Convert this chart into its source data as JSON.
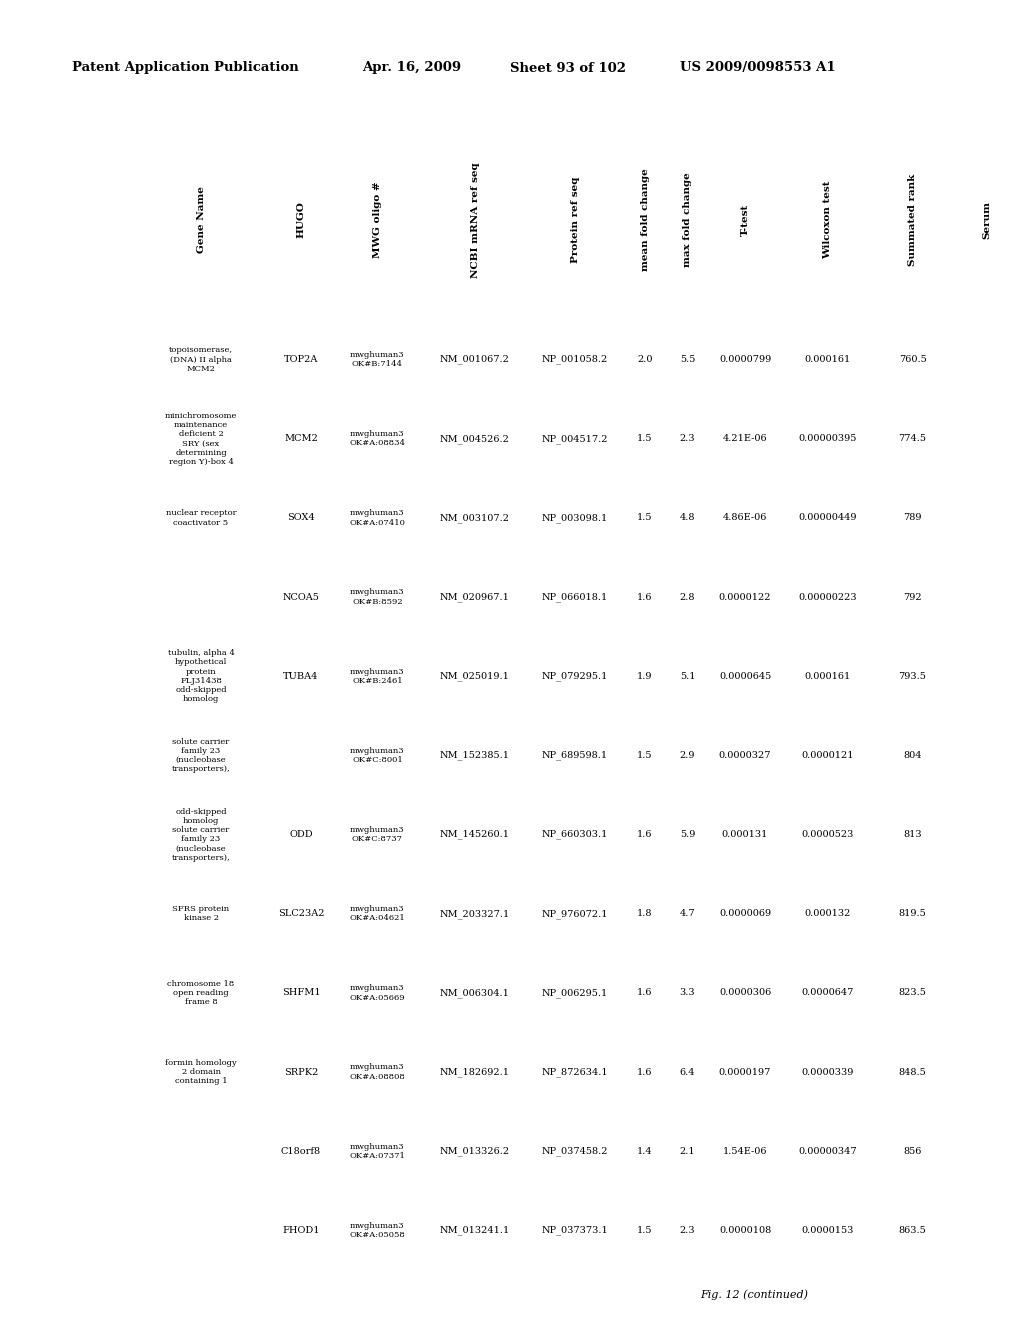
{
  "header_line1": "Patent Application Publication",
  "header_date": "Apr. 16, 2009",
  "header_sheet": "Sheet 93 of 102",
  "header_patent": "US 2009/0098553 A1",
  "fig_caption": "Fig. 12 (continued)",
  "col_headers": [
    "Gene Name",
    "HUGO",
    "MWG oligo\n#",
    "NCBI mRNA\nref seq",
    "Protein ref\nseq",
    "mean\nfold\nchange",
    "max fold\nchange",
    "T-test",
    "Wilcoxon\ntest",
    "Summated\nrank",
    "Serum"
  ],
  "rows": [
    [
      "topoisomerase,\n(DNA) II alpha\nMCM2",
      "TOP2A",
      "mwghuman3\nOK#B:7144",
      "NM_001067.2",
      "NP_001058.2",
      "2.0",
      "5.5",
      "0.0000799",
      "0.000161",
      "760.5",
      ""
    ],
    [
      "minichromosome\nmaintenance\ndeficient 2\nSRY (sex\ndetermining\nregion Y)-box 4",
      "MCM2",
      "mwghuman3\nOK#A:08834",
      "NM_004526.2",
      "NP_004517.2",
      "1.5",
      "2.3",
      "4.21E-06",
      "0.00000395",
      "774.5",
      ""
    ],
    [
      "nuclear receptor\ncoactivator 5",
      "SOX4",
      "mwghuman3\nOK#A:07410",
      "NM_003107.2",
      "NP_003098.1",
      "1.5",
      "4.8",
      "4.86E-06",
      "0.00000449",
      "789",
      ""
    ],
    [
      "",
      "NCOA5",
      "mwghuman3\nOK#B:8592",
      "NM_020967.1",
      "NP_066018.1",
      "1.6",
      "2.8",
      "0.0000122",
      "0.00000223",
      "792",
      ""
    ],
    [
      "tubulin, alpha 4\nhypothetical\nprotein\nFLJ31438\nodd-skipped\nhomolog",
      "TUBA4",
      "mwghuman3\nOK#B:2461",
      "NM_025019.1",
      "NP_079295.1",
      "1.9",
      "5.1",
      "0.0000645",
      "0.000161",
      "793.5",
      ""
    ],
    [
      "solute carrier\nfamily 23\n(nucleobase\ntransporters),",
      "",
      "mwghuman3\nOK#C:8001",
      "NM_152385.1",
      "NP_689598.1",
      "1.5",
      "2.9",
      "0.0000327",
      "0.0000121",
      "804",
      ""
    ],
    [
      "odd-skipped\nhomolog\nsolute carrier\nfamily 23\n(nucleobase\ntransporters),",
      "ODD",
      "mwghuman3\nOK#C:8737",
      "NM_145260.1",
      "NP_660303.1",
      "1.6",
      "5.9",
      "0.000131",
      "0.0000523",
      "813",
      ""
    ],
    [
      "SFRS protein\nkinase 2",
      "SLC23A2",
      "mwghuman3\nOK#A:04621",
      "NM_203327.1",
      "NP_976072.1",
      "1.8",
      "4.7",
      "0.0000069",
      "0.000132",
      "819.5",
      ""
    ],
    [
      "chromosome 18\nopen reading\nframe 8",
      "SHFM1",
      "mwghuman3\nOK#A:05669",
      "NM_006304.1",
      "NP_006295.1",
      "1.6",
      "3.3",
      "0.0000306",
      "0.0000647",
      "823.5",
      ""
    ],
    [
      "formin homology\n2 domain\ncontaining 1",
      "SRPK2",
      "mwghuman3\nOK#A:08808",
      "NM_182692.1",
      "NP_872634.1",
      "1.6",
      "6.4",
      "0.0000197",
      "0.0000339",
      "848.5",
      ""
    ],
    [
      "",
      "C18orf8",
      "mwghuman3\nOK#A:07371",
      "NM_013326.2",
      "NP_037458.2",
      "1.4",
      "2.1",
      "1.54E-06",
      "0.00000347",
      "856",
      ""
    ],
    [
      "",
      "FHOD1",
      "mwghuman3\nOK#A:05058",
      "NM_013241.1",
      "NP_037373.1",
      "1.5",
      "2.3",
      "0.0000108",
      "0.0000153",
      "863.5",
      ""
    ]
  ],
  "background_color": "#ffffff",
  "text_color": "#000000"
}
